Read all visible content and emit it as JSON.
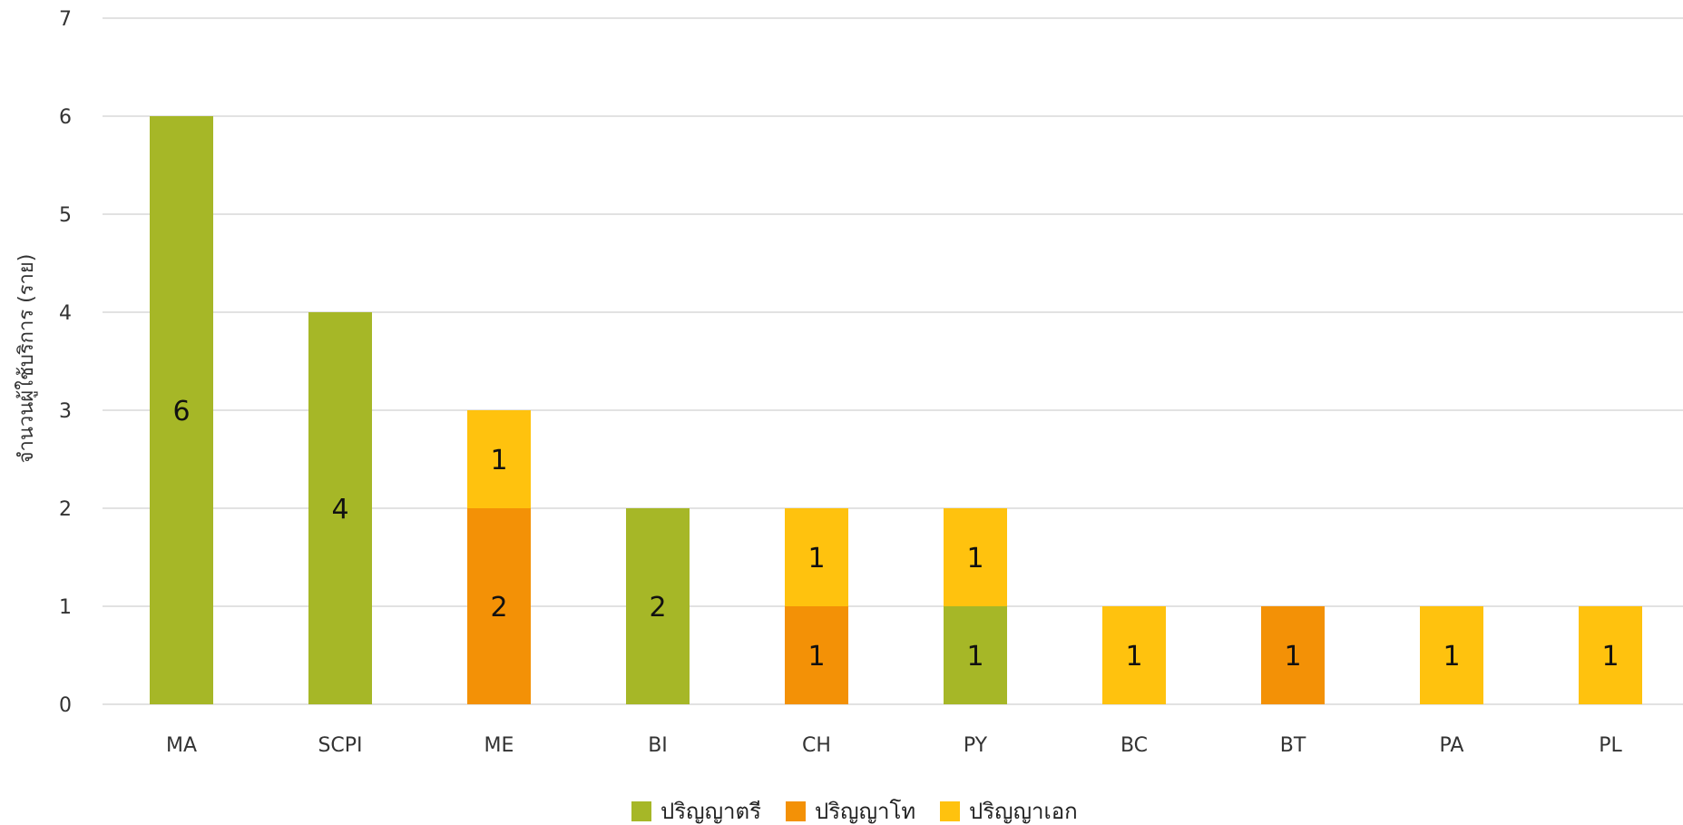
{
  "chart_data": {
    "type": "bar",
    "stacked": true,
    "categories": [
      "MA",
      "SCPI",
      "ME",
      "BI",
      "CH",
      "PY",
      "BC",
      "BT",
      "PA",
      "PL"
    ],
    "series": [
      {
        "name": "ปริญญาตรี",
        "color": "#A6B727",
        "values": [
          6,
          4,
          0,
          2,
          0,
          1,
          0,
          0,
          0,
          0
        ]
      },
      {
        "name": "ปริญญาโท",
        "color": "#F39106",
        "values": [
          0,
          0,
          2,
          0,
          1,
          0,
          0,
          1,
          0,
          0
        ]
      },
      {
        "name": "ปริญญาเอก",
        "color": "#FFC20E",
        "values": [
          0,
          0,
          1,
          0,
          1,
          1,
          1,
          0,
          1,
          1
        ]
      }
    ],
    "title": "",
    "xlabel": "",
    "ylabel": "จำนวนผู้ใช้บริการ (ราย)",
    "ylim": [
      0,
      7
    ],
    "yticks": [
      0,
      1,
      2,
      3,
      4,
      5,
      6,
      7
    ],
    "grid": true,
    "legend": "bottom",
    "data_labels": true
  }
}
